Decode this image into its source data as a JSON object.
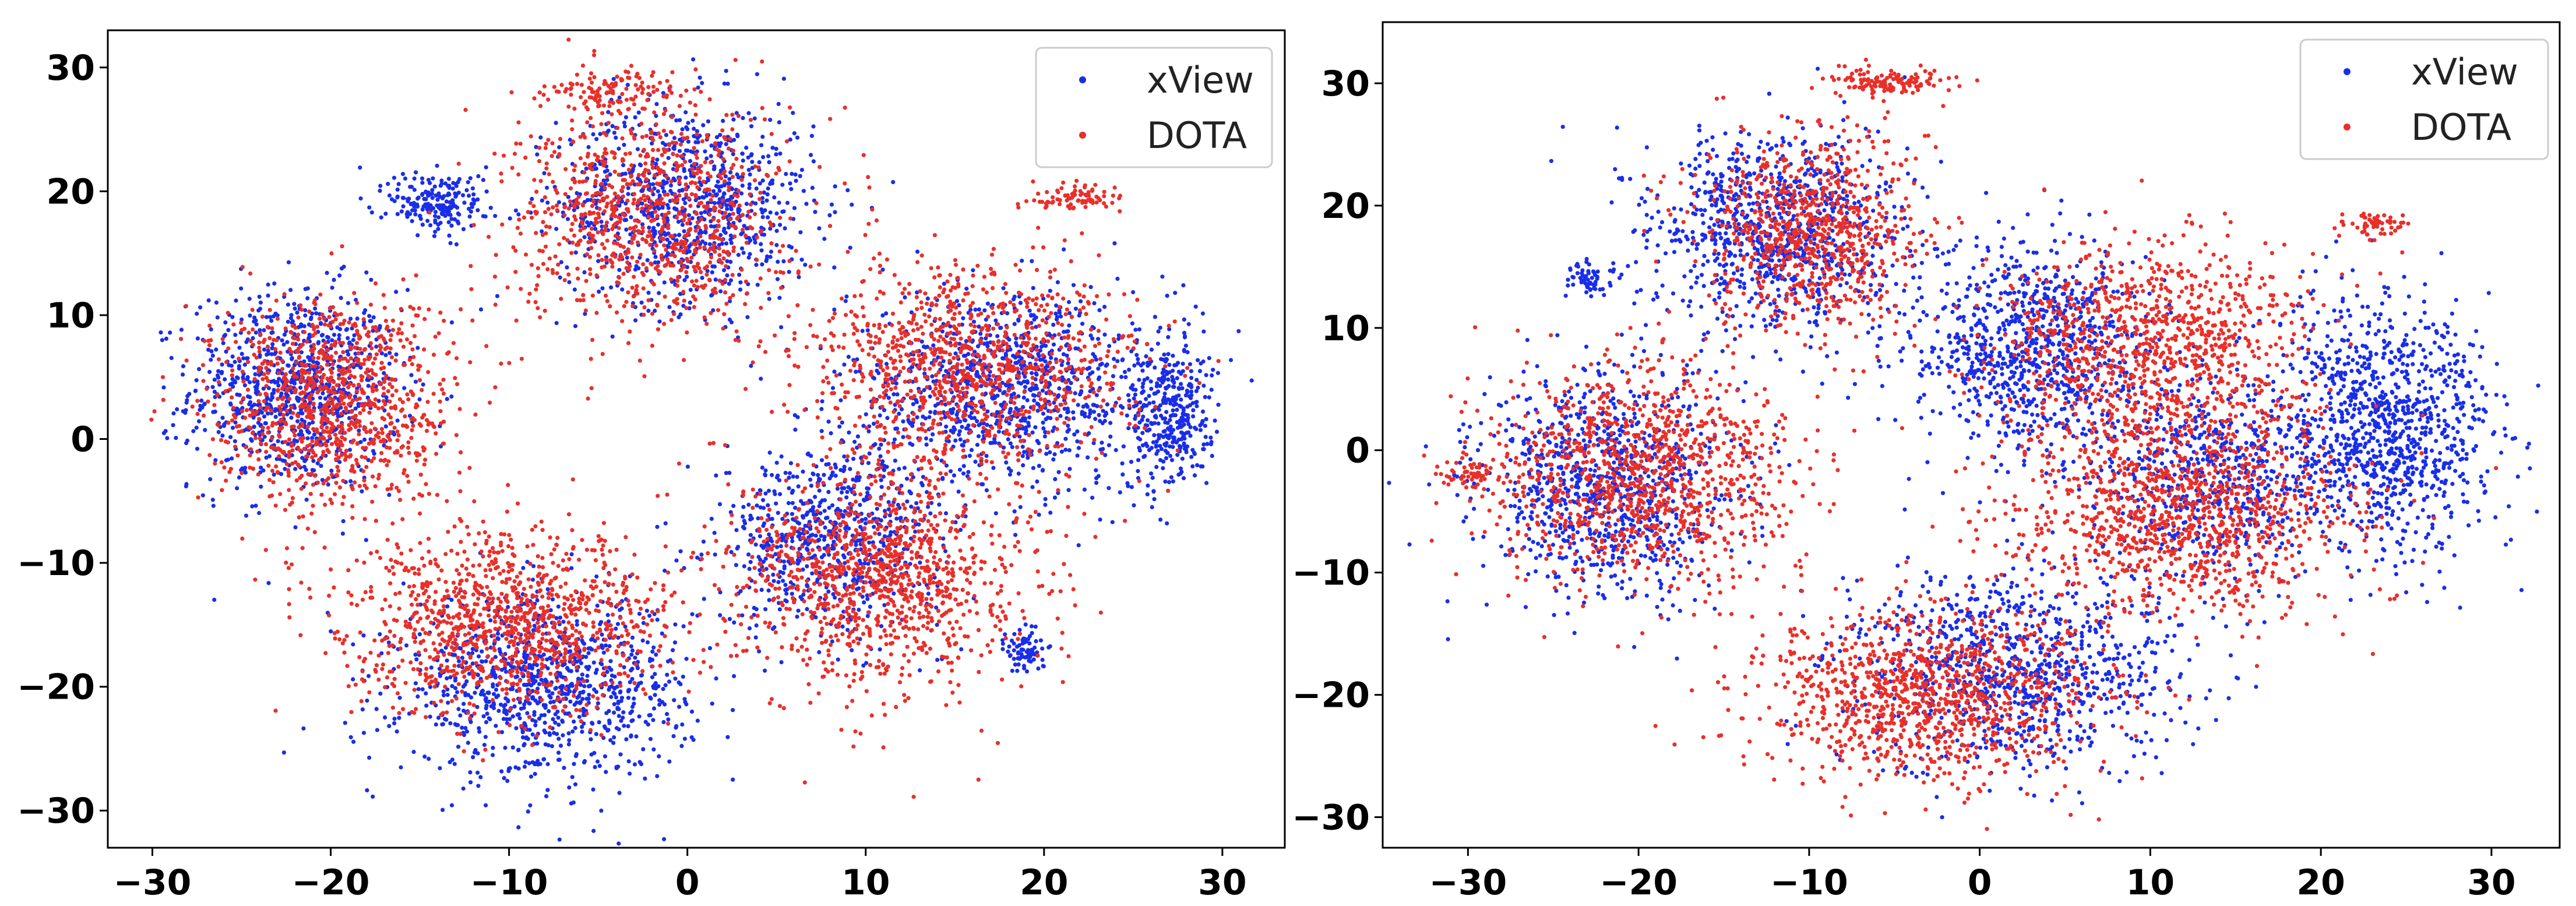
{
  "colors": {
    "xview": "#1a2ee8",
    "dota": "#e8302a"
  },
  "chart_data": [
    {
      "type": "scatter",
      "title": "",
      "xlabel": "",
      "ylabel": "",
      "xlim": [
        -32.5,
        33.5
      ],
      "ylim": [
        -33,
        33
      ],
      "xticks": [
        -30,
        -20,
        -10,
        0,
        10,
        20,
        30
      ],
      "yticks": [
        -30,
        -20,
        -10,
        0,
        10,
        20,
        30
      ],
      "xtick_labels": [
        "−30",
        "−20",
        "−10",
        "0",
        "10",
        "20",
        "30"
      ],
      "ytick_labels": [
        "−30",
        "−20",
        "−10",
        "0",
        "10",
        "20",
        "30"
      ],
      "legend": {
        "position": "upper right",
        "entries": [
          "xView",
          "DOTA"
        ]
      },
      "series": [
        {
          "name": "xView",
          "color": "#1a2ee8",
          "clusters": [
            {
              "cx": -22,
              "cy": 4,
              "rx": 6.5,
              "ry": 9,
              "n": 900
            },
            {
              "cx": 0,
              "cy": 19,
              "rx": 8,
              "ry": 9,
              "n": 900
            },
            {
              "cx": 18,
              "cy": 4,
              "rx": 10,
              "ry": 9,
              "n": 1000
            },
            {
              "cx": -8,
              "cy": -20,
              "rx": 9,
              "ry": 8,
              "n": 1000
            },
            {
              "cx": 8,
              "cy": -8,
              "rx": 7,
              "ry": 8,
              "n": 700
            },
            {
              "cx": 27,
              "cy": 2,
              "rx": 2.5,
              "ry": 7,
              "n": 350
            },
            {
              "cx": -14,
              "cy": 19,
              "rx": 3,
              "ry": 3,
              "n": 200
            },
            {
              "cx": 19,
              "cy": -17,
              "rx": 1.2,
              "ry": 2,
              "n": 80
            }
          ]
        },
        {
          "name": "DOTA",
          "color": "#e8302a",
          "clusters": [
            {
              "cx": -20,
              "cy": 3,
              "rx": 7.5,
              "ry": 9.5,
              "n": 1000
            },
            {
              "cx": -2,
              "cy": 18,
              "rx": 8.5,
              "ry": 10,
              "n": 900
            },
            {
              "cx": 16,
              "cy": 6,
              "rx": 10,
              "ry": 9,
              "n": 1000
            },
            {
              "cx": -10,
              "cy": -15,
              "rx": 10,
              "ry": 8,
              "n": 1100
            },
            {
              "cx": 11,
              "cy": -11,
              "rx": 9,
              "ry": 10,
              "n": 1100
            },
            {
              "cx": -4,
              "cy": 28,
              "rx": 4,
              "ry": 2,
              "n": 120
            },
            {
              "cx": 22,
              "cy": 19.5,
              "rx": 3,
              "ry": 1,
              "n": 80
            }
          ]
        }
      ]
    },
    {
      "type": "scatter",
      "title": "",
      "xlabel": "",
      "ylabel": "",
      "xlim": [
        -35,
        34
      ],
      "ylim": [
        -32.5,
        35
      ],
      "xticks": [
        -30,
        -20,
        -10,
        0,
        10,
        20,
        30
      ],
      "yticks": [
        -30,
        -20,
        -10,
        0,
        10,
        20,
        30
      ],
      "xtick_labels": [
        "−30",
        "−20",
        "−10",
        "0",
        "10",
        "20",
        "30"
      ],
      "ytick_labels": [
        "−30",
        "−20",
        "−10",
        "0",
        "10",
        "20",
        "30"
      ],
      "legend": {
        "position": "upper right",
        "entries": [
          "xView",
          "DOTA"
        ]
      },
      "series": [
        {
          "name": "xView",
          "color": "#1a2ee8",
          "clusters": [
            {
              "cx": -22,
              "cy": -3,
              "rx": 8,
              "ry": 10,
              "n": 900
            },
            {
              "cx": -12,
              "cy": 18,
              "rx": 8,
              "ry": 9,
              "n": 900
            },
            {
              "cx": 3,
              "cy": 8,
              "rx": 8,
              "ry": 10,
              "n": 900
            },
            {
              "cx": 24,
              "cy": 2,
              "rx": 7,
              "ry": 11,
              "n": 1000
            },
            {
              "cx": 2,
              "cy": -18,
              "rx": 11,
              "ry": 9,
              "n": 900
            },
            {
              "cx": 14,
              "cy": -2,
              "rx": 8,
              "ry": 9,
              "n": 600
            },
            {
              "cx": -23,
              "cy": 14,
              "rx": 1.5,
              "ry": 1.5,
              "n": 60
            }
          ]
        },
        {
          "name": "DOTA",
          "color": "#e8302a",
          "clusters": [
            {
              "cx": -20,
              "cy": -2,
              "rx": 10,
              "ry": 10,
              "n": 1100
            },
            {
              "cx": -10,
              "cy": 18,
              "rx": 7,
              "ry": 9,
              "n": 800
            },
            {
              "cx": 10,
              "cy": 8,
              "rx": 10,
              "ry": 10,
              "n": 1000
            },
            {
              "cx": -3,
              "cy": -20,
              "rx": 11,
              "ry": 8,
              "n": 1100
            },
            {
              "cx": 12,
              "cy": -5,
              "rx": 11,
              "ry": 9,
              "n": 1100
            },
            {
              "cx": -5,
              "cy": 30,
              "rx": 4,
              "ry": 1.3,
              "n": 130
            },
            {
              "cx": 23,
              "cy": 18.5,
              "rx": 2,
              "ry": 1,
              "n": 60
            },
            {
              "cx": -30,
              "cy": -2,
              "rx": 2,
              "ry": 1,
              "n": 50
            }
          ]
        }
      ]
    }
  ]
}
